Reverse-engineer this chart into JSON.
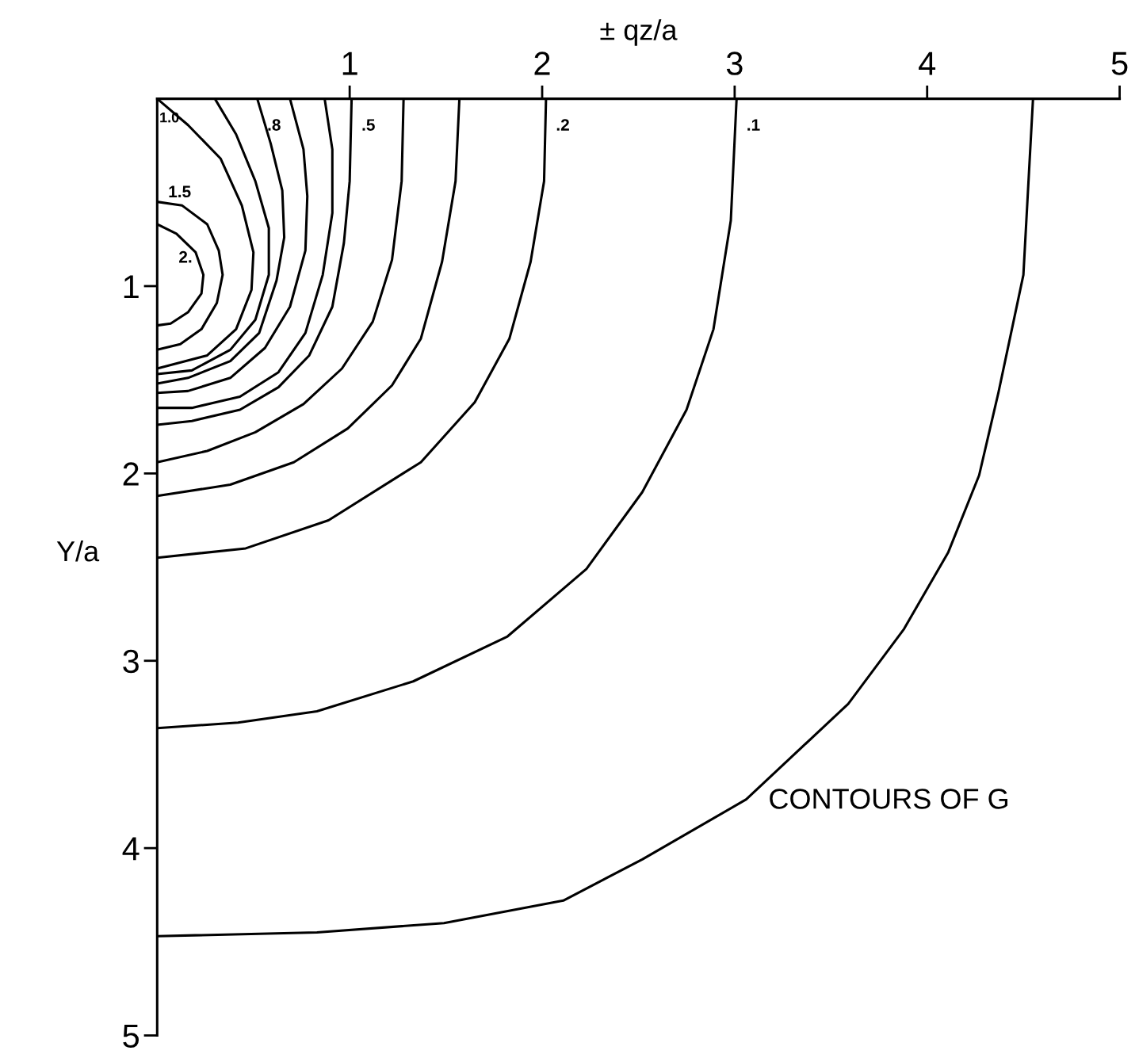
{
  "chart_data": {
    "type": "line",
    "xlabel": "± qz/a",
    "ylabel": "Y/a",
    "xlim": [
      0,
      5
    ],
    "ylim": [
      5,
      0
    ],
    "xticks": [
      1,
      2,
      3,
      4,
      5
    ],
    "yticks": [
      1,
      2,
      3,
      4,
      5
    ],
    "grid": false,
    "legend": false,
    "marker": "none",
    "line_style": "solid",
    "annotations": [
      "CONTOURS OF G"
    ],
    "series": [
      {
        "name": "2.",
        "color": "#000000",
        "x": [
          0,
          0.1,
          0.2,
          0.24,
          0.23,
          0.16,
          0.07,
          0
        ],
        "values": [
          0.67,
          0.72,
          0.82,
          0.94,
          1.04,
          1.14,
          1.2,
          1.21
        ]
      },
      {
        "name": "1.5",
        "color": "#000000",
        "x": [
          0,
          0.13,
          0.26,
          0.32,
          0.34,
          0.31,
          0.23,
          0.12,
          0
        ],
        "values": [
          0.55,
          0.57,
          0.67,
          0.81,
          0.94,
          1.09,
          1.23,
          1.31,
          1.34
        ]
      },
      {
        "name": "1.0",
        "color": "#000000",
        "x": [
          0,
          0.16,
          0.33,
          0.44,
          0.5,
          0.49,
          0.41,
          0.26,
          0
        ],
        "values": [
          0,
          0.14,
          0.32,
          0.57,
          0.82,
          1.02,
          1.23,
          1.37,
          1.44
        ]
      },
      {
        "color": "#000000",
        "x": [
          0.3,
          0.41,
          0.51,
          0.58,
          0.58,
          0.51,
          0.38,
          0.18,
          0
        ],
        "values": [
          0,
          0.19,
          0.44,
          0.69,
          0.94,
          1.18,
          1.34,
          1.45,
          1.47
        ]
      },
      {
        "name": ".8",
        "color": "#000000",
        "x": [
          0.52,
          0.59,
          0.65,
          0.66,
          0.62,
          0.53,
          0.38,
          0.16,
          0
        ],
        "values": [
          0,
          0.24,
          0.49,
          0.74,
          0.97,
          1.25,
          1.4,
          1.49,
          1.52
        ]
      },
      {
        "color": "#000000",
        "x": [
          0.69,
          0.76,
          0.78,
          0.77,
          0.69,
          0.56,
          0.38,
          0.16,
          0
        ],
        "values": [
          0,
          0.27,
          0.52,
          0.81,
          1.11,
          1.33,
          1.49,
          1.56,
          1.57
        ]
      },
      {
        "color": "#000000",
        "x": [
          0.87,
          0.91,
          0.91,
          0.86,
          0.77,
          0.63,
          0.43,
          0.18,
          0
        ],
        "values": [
          0,
          0.27,
          0.61,
          0.94,
          1.25,
          1.46,
          1.59,
          1.65,
          1.65
        ]
      },
      {
        "name": ".5",
        "color": "#000000",
        "x": [
          1.01,
          1.0,
          0.97,
          0.91,
          0.79,
          0.63,
          0.43,
          0.18,
          0
        ],
        "values": [
          0,
          0.44,
          0.77,
          1.11,
          1.37,
          1.54,
          1.66,
          1.72,
          1.74
        ]
      },
      {
        "color": "#000000",
        "x": [
          1.28,
          1.27,
          1.22,
          1.12,
          0.96,
          0.76,
          0.51,
          0.26,
          0
        ],
        "values": [
          0,
          0.44,
          0.86,
          1.19,
          1.44,
          1.63,
          1.78,
          1.88,
          1.94
        ]
      },
      {
        "color": "#000000",
        "x": [
          1.57,
          1.55,
          1.48,
          1.37,
          1.22,
          0.99,
          0.71,
          0.38,
          0
        ],
        "values": [
          0,
          0.44,
          0.87,
          1.28,
          1.53,
          1.76,
          1.94,
          2.06,
          2.12
        ]
      },
      {
        "name": ".2",
        "color": "#000000",
        "x": [
          2.02,
          2.01,
          1.94,
          1.83,
          1.65,
          1.37,
          0.89,
          0.46,
          0
        ],
        "values": [
          0,
          0.44,
          0.87,
          1.28,
          1.62,
          1.94,
          2.25,
          2.4,
          2.45
        ]
      },
      {
        "name": ".1",
        "color": "#000000",
        "x": [
          3.01,
          2.98,
          2.89,
          2.75,
          2.52,
          2.23,
          1.82,
          1.33,
          0.83,
          0.42,
          0
        ],
        "values": [
          0,
          0.65,
          1.23,
          1.66,
          2.1,
          2.51,
          2.87,
          3.11,
          3.27,
          3.33,
          3.36
        ]
      },
      {
        "color": "#000000",
        "x": [
          4.55,
          4.5,
          4.37,
          4.27,
          4.11,
          3.88,
          3.59,
          3.06,
          2.52,
          2.11,
          1.49,
          0.83,
          0
        ],
        "values": [
          0,
          0.94,
          1.57,
          2.01,
          2.42,
          2.83,
          3.23,
          3.74,
          4.06,
          4.28,
          4.4,
          4.45,
          4.47
        ]
      }
    ]
  }
}
